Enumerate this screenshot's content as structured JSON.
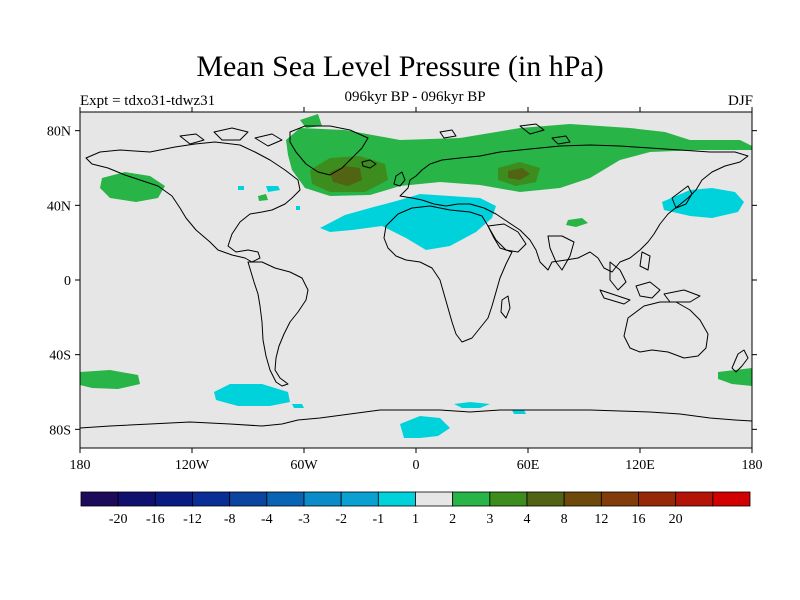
{
  "header": {
    "title": "Mean Sea Level Pressure (in hPa)",
    "subtitle": "096kyr BP - 096kyr BP",
    "experiment": "Expt = tdxo31-tdwz31",
    "season": "DJF"
  },
  "chart_data": {
    "type": "heatmap",
    "title": "Mean Sea Level Pressure (in hPa)",
    "subtitle": "096kyr BP - 096kyr BP",
    "x_ticks": [
      "180",
      "120W",
      "60W",
      "0",
      "60E",
      "120E",
      "180"
    ],
    "y_ticks": [
      "80N",
      "40N",
      "0",
      "40S",
      "80S"
    ],
    "xlim": [
      -180,
      180
    ],
    "ylim": [
      -90,
      90
    ],
    "legend": {
      "labels": [
        "-20",
        "-16",
        "-12",
        "-8",
        "-4",
        "-3",
        "-2",
        "-1",
        "1",
        "2",
        "3",
        "4",
        "8",
        "12",
        "16",
        "20"
      ],
      "colors": [
        "#1e0a5a",
        "#10106e",
        "#0a1c82",
        "#0a2e96",
        "#0a46a0",
        "#0a64b4",
        "#0a8cc8",
        "#0aa0d2",
        "#00d2dc",
        "#e6e6e6",
        "#28b446",
        "#3c8c1e",
        "#506414",
        "#6e4a0a",
        "#823c0a",
        "#962808",
        "#b41408",
        "#d20000"
      ]
    }
  }
}
